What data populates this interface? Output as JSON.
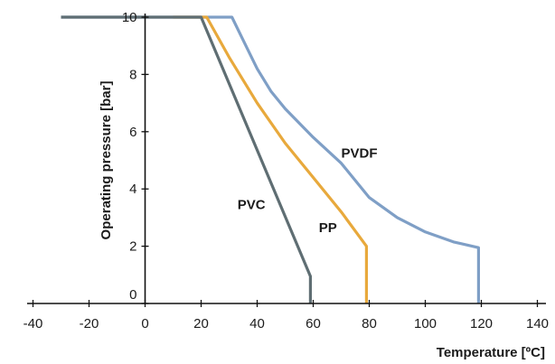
{
  "chart_data": {
    "type": "line",
    "xlabel": "Temperature [ºC]",
    "ylabel": "Operating pressure [bar]",
    "xlim": [
      -40,
      140
    ],
    "ylim": [
      0,
      10
    ],
    "x_ticks": [
      -40,
      -20,
      0,
      20,
      40,
      60,
      80,
      100,
      120,
      140
    ],
    "y_ticks": [
      0,
      2,
      4,
      6,
      8,
      10
    ],
    "grid": false,
    "legend": "none",
    "series": [
      {
        "name": "PVDF",
        "color": "#7f9fc6",
        "label_at": [
          70,
          5.1
        ],
        "points": [
          [
            -30,
            10
          ],
          [
            31,
            10
          ],
          [
            35,
            9.2
          ],
          [
            40,
            8.2
          ],
          [
            45,
            7.4
          ],
          [
            50,
            6.8
          ],
          [
            60,
            5.8
          ],
          [
            70,
            4.9
          ],
          [
            80,
            3.7
          ],
          [
            90,
            3.0
          ],
          [
            100,
            2.5
          ],
          [
            110,
            2.15
          ],
          [
            119,
            1.95
          ],
          [
            119,
            0
          ]
        ]
      },
      {
        "name": "PP",
        "color": "#e8a93c",
        "label_at": [
          62,
          2.5
        ],
        "points": [
          [
            10,
            10
          ],
          [
            22,
            10
          ],
          [
            30,
            8.6
          ],
          [
            40,
            7.0
          ],
          [
            50,
            5.6
          ],
          [
            60,
            4.4
          ],
          [
            70,
            3.2
          ],
          [
            79,
            2.0
          ],
          [
            79,
            0
          ]
        ]
      },
      {
        "name": "PVC",
        "color": "#5f6e73",
        "label_at": [
          33,
          3.3
        ],
        "points": [
          [
            -30,
            10
          ],
          [
            20,
            10
          ],
          [
            59,
            0.95
          ],
          [
            59,
            0
          ]
        ]
      }
    ]
  }
}
